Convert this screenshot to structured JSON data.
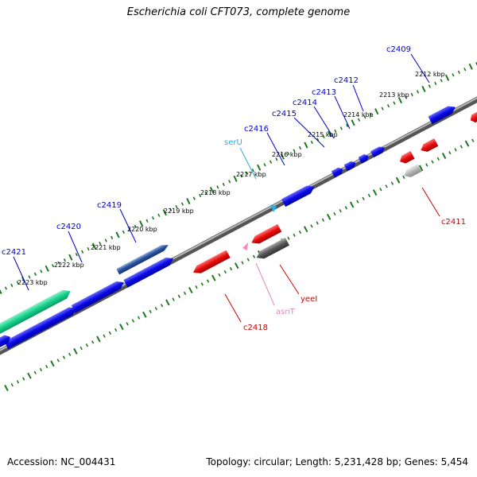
{
  "title": "Escherichia coli CFT073, complete genome",
  "footer": {
    "accession": "Accession: NC_004431",
    "stats": "Topology: circular; Length: 5,231,428 bp; Genes: 5,454"
  },
  "colors": {
    "forward_gene": "#0a0ae6",
    "reverse_gene": "#e60a0a",
    "trna_forward": "#1eb4e6",
    "trna_reverse": "#f08cbe",
    "pseudo_reverse": "#555555",
    "pseudo_light": "#b4b4b4",
    "highlight_gene": "#14d28c",
    "shaded_gene": "#2850a0",
    "backbone": "#888888",
    "tick": "#1e781e"
  },
  "kbp_labels": [
    "2212 kbp",
    "2213 kbp",
    "2214 kbp",
    "2215 kbp",
    "2216 kbp",
    "2217 kbp",
    "2218 kbp",
    "2219 kbp",
    "2220 kbp",
    "2221 kbp",
    "2222 kbp",
    "2223 kbp"
  ],
  "gene_labels": [
    {
      "text": "c2409",
      "color": "#0000cc"
    },
    {
      "text": "c2412",
      "color": "#0000cc"
    },
    {
      "text": "c2413",
      "color": "#0000cc"
    },
    {
      "text": "c2414",
      "color": "#0000cc"
    },
    {
      "text": "c2415",
      "color": "#0000cc"
    },
    {
      "text": "c2416",
      "color": "#0000cc"
    },
    {
      "text": "serU",
      "color": "#33aadd"
    },
    {
      "text": "c2419",
      "color": "#0000cc"
    },
    {
      "text": "c2420",
      "color": "#0000cc"
    },
    {
      "text": "c2421",
      "color": "#0000cc"
    },
    {
      "text": "c2411",
      "color": "#cc0000"
    },
    {
      "text": "yeeI",
      "color": "#cc0000"
    },
    {
      "text": "asnT",
      "color": "#e888b8"
    },
    {
      "text": "c2418",
      "color": "#cc0000"
    }
  ]
}
